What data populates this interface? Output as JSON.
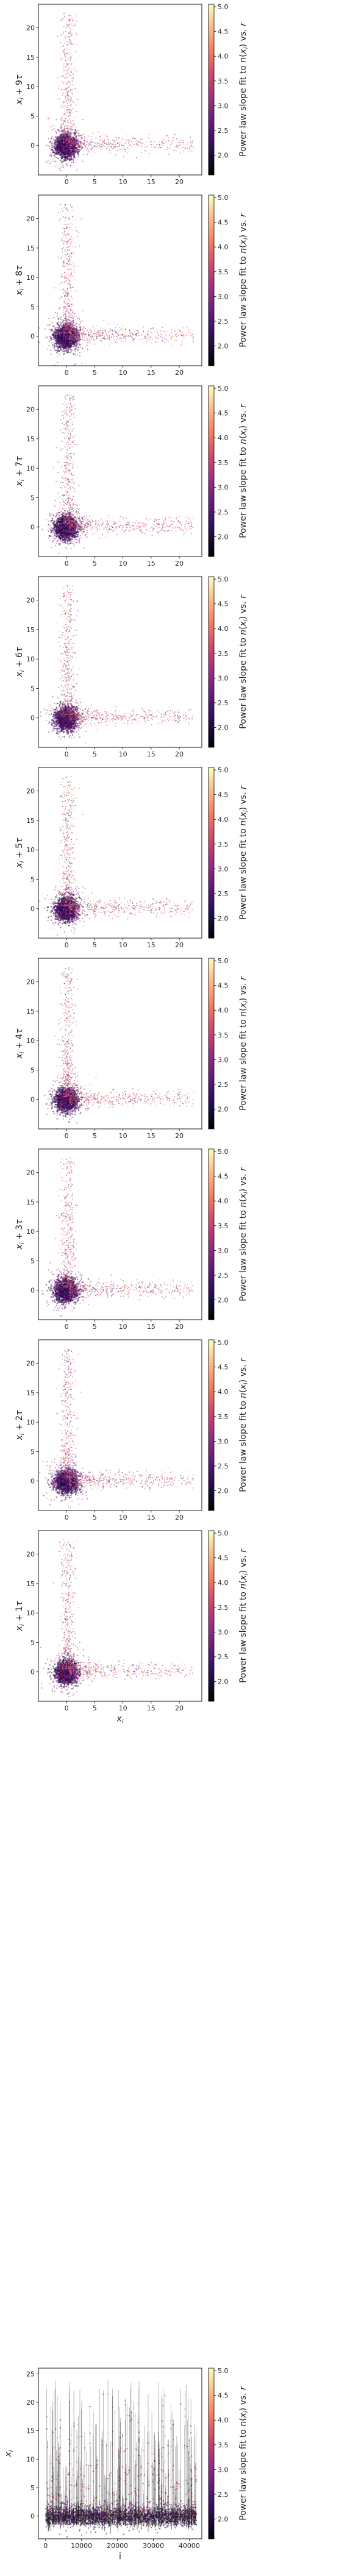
{
  "colorbar": {
    "label": "Power law slope fit to n(x_i) vs. r",
    "label_main": "Power law slope fit to ",
    "label_n": "n",
    "label_x": "x",
    "label_i": "i",
    "label_tail": ") vs. ",
    "label_r": "r",
    "range": [
      1.6,
      5.05
    ],
    "ticks": [
      "2.0",
      "2.5",
      "3.0",
      "3.5",
      "4.0",
      "4.5",
      "5.0"
    ],
    "colormap": "magma"
  },
  "chart_data": [
    {
      "type": "scatter",
      "ylabel": "x_i + 9τ",
      "ylabel_parts": {
        "var": "x",
        "sub": "i",
        "op": " + 9",
        "tau": "τ"
      },
      "xlim": [
        -5,
        24
      ],
      "ylim": [
        -5,
        24
      ],
      "xticks": [
        "0",
        "5",
        "10",
        "15",
        "20"
      ],
      "yticks": [
        "0",
        "5",
        "10",
        "15",
        "20"
      ]
    },
    {
      "type": "scatter",
      "ylabel": "x_i + 8τ",
      "ylabel_parts": {
        "var": "x",
        "sub": "i",
        "op": " + 8",
        "tau": "τ"
      },
      "xlim": [
        -5,
        24
      ],
      "ylim": [
        -5,
        24
      ],
      "xticks": [
        "0",
        "5",
        "10",
        "15",
        "20"
      ],
      "yticks": [
        "0",
        "5",
        "10",
        "15",
        "20"
      ]
    },
    {
      "type": "scatter",
      "ylabel": "x_i + 7τ",
      "ylabel_parts": {
        "var": "x",
        "sub": "i",
        "op": " + 7",
        "tau": "τ"
      },
      "xlim": [
        -5,
        24
      ],
      "ylim": [
        -5,
        24
      ],
      "xticks": [
        "0",
        "5",
        "10",
        "15",
        "20"
      ],
      "yticks": [
        "0",
        "5",
        "10",
        "15",
        "20"
      ]
    },
    {
      "type": "scatter",
      "ylabel": "x_i + 6τ",
      "ylabel_parts": {
        "var": "x",
        "sub": "i",
        "op": " + 6",
        "tau": "τ"
      },
      "xlim": [
        -5,
        24
      ],
      "ylim": [
        -5,
        24
      ],
      "xticks": [
        "0",
        "5",
        "10",
        "15",
        "20"
      ],
      "yticks": [
        "0",
        "5",
        "10",
        "15",
        "20"
      ]
    },
    {
      "type": "scatter",
      "ylabel": "x_i + 5τ",
      "ylabel_parts": {
        "var": "x",
        "sub": "i",
        "op": " + 5",
        "tau": "τ"
      },
      "xlim": [
        -5,
        24
      ],
      "ylim": [
        -5,
        24
      ],
      "xticks": [
        "0",
        "5",
        "10",
        "15",
        "20"
      ],
      "yticks": [
        "0",
        "5",
        "10",
        "15",
        "20"
      ]
    },
    {
      "type": "scatter",
      "ylabel": "x_i + 4τ",
      "ylabel_parts": {
        "var": "x",
        "sub": "i",
        "op": " + 4",
        "tau": "τ"
      },
      "xlim": [
        -5,
        24
      ],
      "ylim": [
        -5,
        24
      ],
      "xticks": [
        "0",
        "5",
        "10",
        "15",
        "20"
      ],
      "yticks": [
        "0",
        "5",
        "10",
        "15",
        "20"
      ]
    },
    {
      "type": "scatter",
      "ylabel": "x_i + 3τ",
      "ylabel_parts": {
        "var": "x",
        "sub": "i",
        "op": " + 3",
        "tau": "τ"
      },
      "xlim": [
        -5,
        24
      ],
      "ylim": [
        -5,
        24
      ],
      "xticks": [
        "0",
        "5",
        "10",
        "15",
        "20"
      ],
      "yticks": [
        "0",
        "5",
        "10",
        "15",
        "20"
      ]
    },
    {
      "type": "scatter",
      "ylabel": "x_i + 2τ",
      "ylabel_parts": {
        "var": "x",
        "sub": "i",
        "op": " + 2",
        "tau": "τ"
      },
      "xlim": [
        -5,
        24
      ],
      "ylim": [
        -5,
        24
      ],
      "xticks": [
        "0",
        "5",
        "10",
        "15",
        "20"
      ],
      "yticks": [
        "0",
        "5",
        "10",
        "15",
        "20"
      ]
    },
    {
      "type": "scatter",
      "ylabel": "x_i + 1τ",
      "ylabel_parts": {
        "var": "x",
        "sub": "i",
        "op": " + 1",
        "tau": "τ"
      },
      "xlabel": "x_i",
      "xlabel_parts": {
        "var": "x",
        "sub": "i"
      },
      "xlim": [
        -5,
        24
      ],
      "ylim": [
        -5,
        24
      ],
      "xticks": [
        "0",
        "5",
        "10",
        "15",
        "20"
      ],
      "yticks": [
        "0",
        "5",
        "10",
        "15",
        "20"
      ]
    },
    {
      "type": "line",
      "ylabel": "x_i",
      "ylabel_parts": {
        "var": "x",
        "sub": "i"
      },
      "xlabel": "i",
      "xlim": [
        -2000,
        43500
      ],
      "ylim": [
        -4,
        26
      ],
      "xticks": [
        "0",
        "10000",
        "20000",
        "30000",
        "40000"
      ],
      "yticks": [
        "0",
        "5",
        "10",
        "15",
        "20",
        "25"
      ]
    }
  ]
}
